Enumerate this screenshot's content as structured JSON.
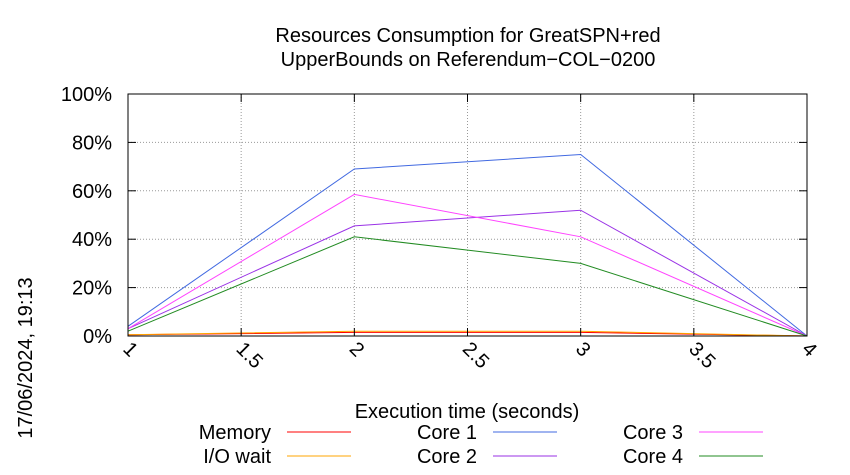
{
  "chart_data": {
    "type": "line",
    "title_line1": "Resources Consumption for GreatSPN+red",
    "title_line2": "UpperBounds on Referendum−COL−0200",
    "xlabel": "Execution time (seconds)",
    "ylabel": "",
    "side_label": "17/06/2024, 19:13",
    "xlim": [
      1,
      4
    ],
    "ylim": [
      0,
      100
    ],
    "x_ticks": [
      1,
      1.5,
      2,
      2.5,
      3,
      3.5,
      4
    ],
    "x_tick_labels": [
      "1",
      "1.5",
      "2",
      "2.5",
      "3",
      "3.5",
      "4"
    ],
    "y_ticks": [
      0,
      20,
      40,
      60,
      80,
      100
    ],
    "y_tick_labels": [
      "0%",
      "20%",
      "40%",
      "60%",
      "80%",
      "100%"
    ],
    "grid": true,
    "legend_position": "bottom",
    "x": [
      1,
      2,
      3,
      4
    ],
    "series": [
      {
        "name": "Memory",
        "color": "#ff0000",
        "values": [
          0.5,
          1.5,
          1.5,
          0
        ]
      },
      {
        "name": "I/O wait",
        "color": "#ffa500",
        "values": [
          0.5,
          2,
          2,
          0
        ]
      },
      {
        "name": "Core 1",
        "color": "#4169e1",
        "values": [
          4,
          69,
          75,
          0
        ]
      },
      {
        "name": "Core 2",
        "color": "#9a32e6",
        "values": [
          3,
          45.5,
          52,
          0
        ]
      },
      {
        "name": "Core 3",
        "color": "#ff44ff",
        "values": [
          3,
          58.5,
          41,
          0
        ]
      },
      {
        "name": "Core 4",
        "color": "#228b22",
        "values": [
          2,
          41,
          30,
          0
        ]
      }
    ]
  }
}
